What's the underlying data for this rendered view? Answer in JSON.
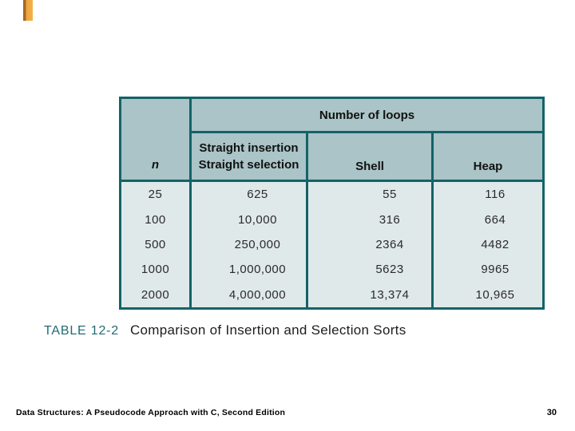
{
  "colors": {
    "table_border": "#136367",
    "header_bg": "#aac4c7",
    "body_bg": "#e0e9ea",
    "caption_accent": "#206b75",
    "marker_orange": "#eca43e",
    "marker_shadow": "#a8671f"
  },
  "table": {
    "span_header": "Number of loops",
    "n_label": "n",
    "straight_line1": "Straight insertion",
    "straight_line2": "Straight selection",
    "shell_label": "Shell",
    "heap_label": "Heap",
    "rows": [
      [
        "25",
        "625",
        "55",
        "116"
      ],
      [
        "100",
        "10,000",
        "316",
        "664"
      ],
      [
        "500",
        "250,000",
        "2364",
        "4482"
      ],
      [
        "1000",
        "1,000,000",
        "5623",
        "9965"
      ],
      [
        "2000",
        "4,000,000",
        "13,374",
        "10,965"
      ]
    ]
  },
  "caption": {
    "label": "TABLE 12-2",
    "title": "Comparison of Insertion and Selection Sorts"
  },
  "footer": {
    "book_title": "Data Structures: A Pseudocode Approach with C, Second Edition",
    "page_number": "30"
  }
}
